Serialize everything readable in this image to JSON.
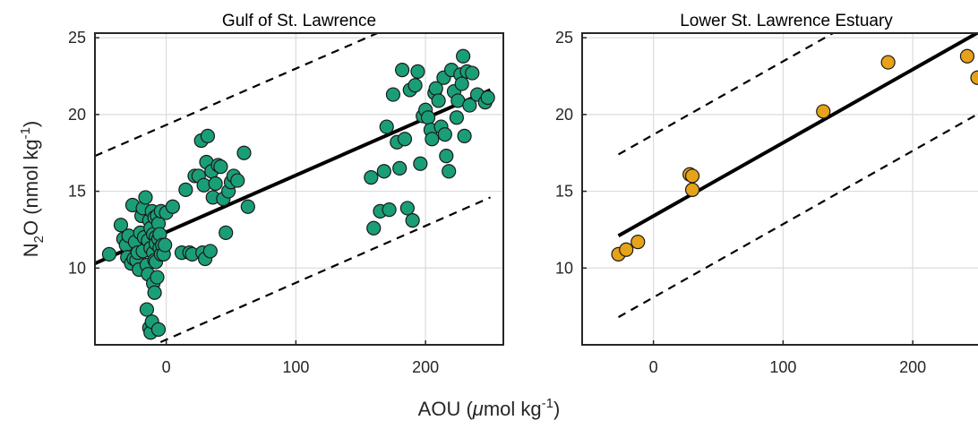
{
  "chart_data": [
    {
      "type": "scatter",
      "title": "Gulf of St. Lawrence",
      "xlim": [
        -55,
        260
      ],
      "ylim": [
        5,
        25.3
      ],
      "xticks": [
        0,
        100,
        200
      ],
      "yticks": [
        10,
        15,
        20,
        25
      ],
      "grid": true,
      "marker_color": "#1a9e77",
      "series": [
        {
          "x": [
            -44,
            -35,
            -33,
            -31,
            -30,
            -29,
            -27,
            -26,
            -25,
            -24,
            -23,
            -22,
            -21,
            -20,
            -19,
            -18,
            -18,
            -17,
            -16,
            -15,
            -15,
            -14,
            -14,
            -13,
            -13,
            -12,
            -12,
            -12,
            -11,
            -11,
            -10,
            -10,
            -10,
            -9,
            -9,
            -9,
            -8,
            -8,
            -8,
            -7,
            -7,
            -6,
            -6,
            -6,
            -5,
            -5,
            -4,
            -4,
            -3,
            -2,
            -1,
            0,
            5,
            12,
            15,
            18,
            20,
            22,
            25,
            27,
            28,
            29,
            30,
            31,
            32,
            34,
            35,
            36,
            38,
            40,
            42,
            44,
            46,
            48,
            50,
            52,
            55,
            60,
            63
          ],
          "y": [
            10.9,
            12.8,
            11.9,
            11.5,
            10.7,
            12.1,
            10.3,
            14.1,
            10.6,
            11.7,
            10.5,
            11.0,
            9.9,
            12.3,
            13.4,
            11.1,
            13.9,
            12.0,
            14.6,
            10.2,
            7.3,
            11.8,
            9.6,
            13.1,
            6.1,
            12.6,
            5.8,
            11.3,
            13.7,
            6.5,
            11.0,
            12.2,
            9.0,
            10.5,
            13.3,
            8.4,
            12.0,
            11.6,
            10.4,
            13.4,
            9.4,
            12.9,
            11.9,
            6.0,
            12.2,
            11.3,
            13.7,
            10.9,
            11.5,
            10.9,
            11.5,
            13.6,
            14.0,
            11.0,
            15.1,
            11.0,
            10.9,
            16.0,
            16.0,
            18.3,
            11.0,
            15.4,
            10.6,
            16.9,
            18.6,
            11.1,
            16.3,
            14.6,
            15.5,
            16.7,
            16.6,
            14.5,
            12.3,
            15.0,
            15.6,
            16.0,
            15.7,
            17.5,
            14.0
          ]
        },
        {
          "x": [
            158,
            160,
            165,
            168,
            170,
            172,
            175,
            178,
            180,
            182,
            184,
            186,
            188,
            190,
            192,
            194,
            196,
            198,
            200,
            202,
            204,
            205,
            207,
            208,
            210,
            212,
            214,
            215,
            216,
            218,
            220,
            222,
            224,
            225,
            227,
            228,
            229,
            230,
            232,
            234,
            236,
            240,
            246,
            248
          ],
          "y": [
            15.9,
            12.6,
            13.7,
            16.3,
            19.2,
            13.8,
            21.3,
            18.2,
            16.5,
            22.9,
            18.4,
            13.9,
            21.6,
            13.1,
            21.9,
            22.8,
            16.8,
            19.9,
            20.3,
            19.8,
            19.0,
            18.4,
            21.4,
            21.7,
            20.9,
            19.2,
            22.4,
            18.7,
            17.3,
            16.3,
            22.9,
            21.5,
            19.8,
            20.9,
            22.6,
            22.0,
            23.8,
            18.6,
            22.8,
            20.6,
            22.7,
            21.3,
            20.8,
            21.1
          ]
        }
      ],
      "fit": {
        "x": [
          -55,
          250
        ],
        "y": [
          10.3,
          21.6
        ]
      },
      "bounds": [
        {
          "x": [
            -55,
            250
          ],
          "y": [
            17.3,
            28.5
          ]
        },
        {
          "x": [
            -55,
            250
          ],
          "y": [
            3.3,
            14.6
          ]
        }
      ]
    },
    {
      "type": "scatter",
      "title": "Lower St. Lawrence Estuary",
      "xlim": [
        -55,
        260
      ],
      "ylim": [
        5,
        25.3
      ],
      "xticks": [
        0,
        100,
        200
      ],
      "yticks": [
        10,
        15,
        20,
        25
      ],
      "grid": true,
      "marker_color": "#e6a218",
      "series": [
        {
          "x": [
            -27,
            -21,
            -12,
            28,
            30,
            30,
            131,
            181,
            242,
            250
          ],
          "y": [
            10.9,
            11.2,
            11.7,
            16.1,
            15.1,
            16.0,
            20.2,
            23.4,
            23.8,
            22.4
          ]
        }
      ],
      "fit": {
        "x": [
          -27,
          260
        ],
        "y": [
          12.1,
          25.8
        ]
      },
      "bounds": [
        {
          "x": [
            -27,
            260
          ],
          "y": [
            17.4,
            31.1
          ]
        },
        {
          "x": [
            -27,
            260
          ],
          "y": [
            6.8,
            20.5
          ]
        }
      ]
    }
  ],
  "labels": {
    "ylabel": "N2O (nmol kg-1)",
    "xlabel": "AOU (μmol kg-1)"
  }
}
